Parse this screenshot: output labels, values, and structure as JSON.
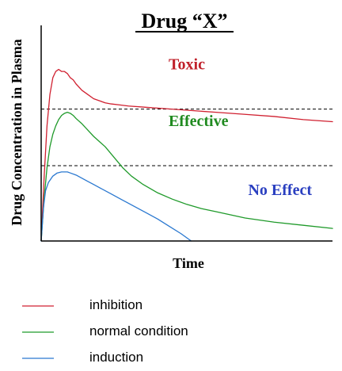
{
  "chart_data": {
    "type": "line",
    "title": "Drug “X”",
    "xlabel": "Time",
    "ylabel": "Drug Concentration in Plasma",
    "x_ticks": "none",
    "y_ticks": "none",
    "grid": false,
    "xlim": [
      0,
      100
    ],
    "ylim": [
      0,
      100
    ],
    "thresholds": [
      {
        "y": 63,
        "style": "dashed"
      },
      {
        "y": 36,
        "style": "dashed"
      }
    ],
    "zones": [
      {
        "label": "Toxic",
        "color": "#c0202a",
        "x": 50,
        "y": 82
      },
      {
        "label": "Effective",
        "color": "#1f8a1f",
        "x": 54,
        "y": 55
      },
      {
        "label": "No Effect",
        "color": "#2a3fc0",
        "x": 82,
        "y": 22
      }
    ],
    "series": [
      {
        "name": "inhibition",
        "color": "#d02030",
        "x": [
          0,
          1,
          2,
          3,
          4,
          5,
          6,
          7,
          8,
          9,
          10,
          11,
          12,
          14,
          16,
          18,
          20,
          22,
          24,
          27,
          30,
          35,
          40,
          50,
          60,
          70,
          80,
          90,
          100
        ],
        "y": [
          0,
          30,
          55,
          70,
          78,
          81,
          82,
          81,
          81,
          80,
          78,
          77,
          75,
          72,
          70,
          68,
          67,
          66,
          65.5,
          65,
          64.5,
          64,
          63.5,
          62.5,
          61.5,
          60.5,
          59.5,
          58,
          57
        ]
      },
      {
        "name": "normal condition",
        "color": "#1f9a2a",
        "x": [
          0,
          1,
          2,
          3,
          4,
          5,
          6,
          7,
          8,
          9,
          10,
          11,
          12,
          14,
          16,
          18,
          20,
          22,
          25,
          28,
          31,
          35,
          40,
          45,
          50,
          55,
          60,
          70,
          80,
          90,
          100
        ],
        "y": [
          0,
          20,
          35,
          45,
          51,
          55,
          58,
          60,
          61,
          61.5,
          61,
          60,
          58.5,
          56,
          53,
          50,
          47.5,
          45,
          40,
          35,
          31,
          27,
          23,
          20,
          17.5,
          15.5,
          14,
          11,
          9,
          7.5,
          6
        ]
      },
      {
        "name": "induction",
        "color": "#2a78d0",
        "x": [
          0,
          0.8,
          1.5,
          2.5,
          4,
          5.5,
          7,
          8,
          9,
          10,
          12,
          14,
          16,
          18,
          20,
          24,
          28,
          32,
          36,
          40,
          44,
          48,
          51.5
        ],
        "y": [
          0,
          16,
          24,
          28,
          31,
          32.5,
          33,
          33,
          33,
          32.5,
          31.5,
          30,
          28.5,
          27,
          25.5,
          22.5,
          19.5,
          16.5,
          13.5,
          10.5,
          7,
          3.5,
          0
        ]
      }
    ],
    "legend": {
      "placement": "bottom",
      "entries": [
        "inhibition",
        "normal condition",
        "induction"
      ]
    }
  }
}
